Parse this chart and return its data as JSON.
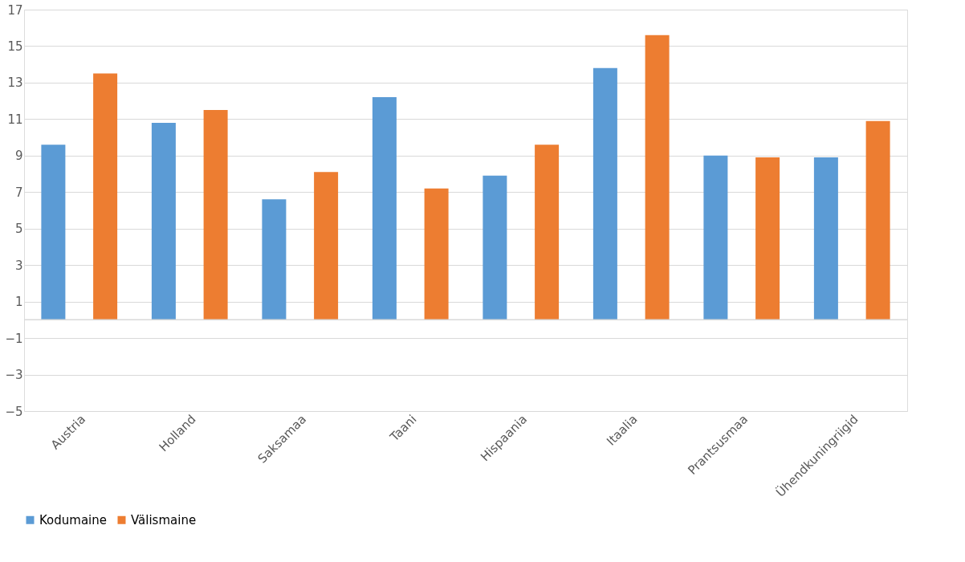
{
  "chart_data": {
    "type": "bar",
    "categories": [
      "Austria",
      "Holland",
      "Saksamaa",
      "Taani",
      "Hispaania",
      "Itaalia",
      "Prantsusmaa",
      "Ühendkuningriigid"
    ],
    "series": [
      {
        "name": "Kodumaine",
        "color": "#5b9bd5",
        "values": [
          9.6,
          10.8,
          6.6,
          12.2,
          7.9,
          13.8,
          9.0,
          8.9
        ]
      },
      {
        "name": "Välismaine",
        "color": "#ed7d31",
        "values": [
          13.5,
          11.5,
          8.1,
          7.2,
          9.6,
          15.6,
          8.9,
          10.9
        ]
      }
    ],
    "ylim": [
      -5,
      17
    ],
    "yticks": [
      -5,
      -3,
      -1,
      1,
      3,
      5,
      7,
      9,
      11,
      13,
      15,
      17
    ],
    "grid": "y",
    "legend": "bottom"
  }
}
